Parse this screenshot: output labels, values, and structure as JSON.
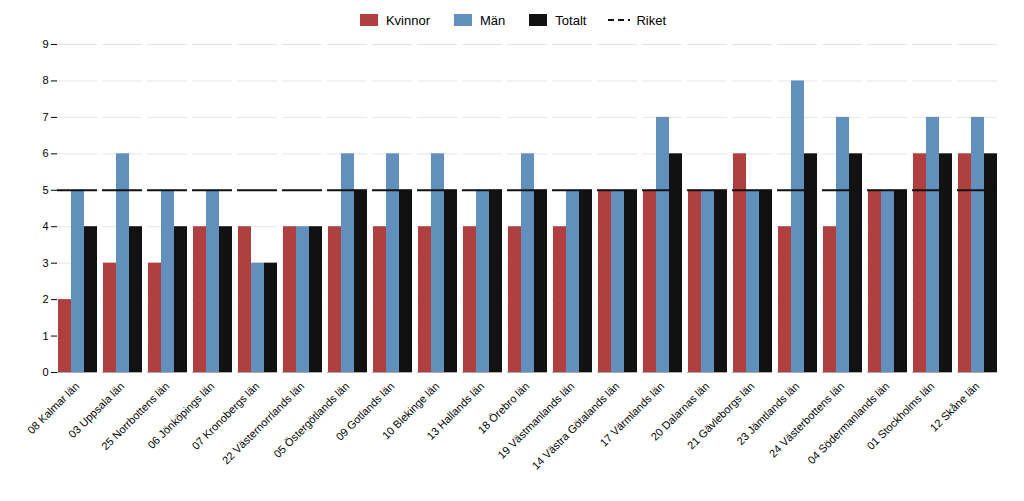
{
  "chart_data": {
    "type": "bar",
    "categories": [
      "08 Kalmar län",
      "03 Uppsala län",
      "25 Norrbottens län",
      "06 Jönköpings län",
      "07 Kronobergs län",
      "22 Västernorrlands län",
      "05 Östergötlands län",
      "09 Gotlands län",
      "10 Blekinge län",
      "13 Hallands län",
      "18 Örebro län",
      "19 Västmanlands län",
      "14 Västra Götalands län",
      "17 Värmlands län",
      "20 Dalarnas län",
      "21 Gävleborgs län",
      "23 Jämtlands län",
      "24 Västerbottens län",
      "04 Södermanlands län",
      "01 Stockholms län",
      "12 Skåne län"
    ],
    "series": [
      {
        "name": "Kvinnor",
        "type": "bar",
        "color": "#b04040",
        "values": [
          2,
          3,
          3,
          4,
          4,
          4,
          4,
          4,
          4,
          4,
          4,
          4,
          5,
          5,
          5,
          6,
          4,
          4,
          5,
          6,
          6
        ]
      },
      {
        "name": "Män",
        "type": "bar",
        "color": "#6090bb",
        "values": [
          5,
          6,
          5,
          5,
          3,
          4,
          6,
          6,
          6,
          5,
          6,
          5,
          5,
          7,
          5,
          5,
          8,
          7,
          5,
          7,
          7
        ]
      },
      {
        "name": "Totalt",
        "type": "bar",
        "color": "#111111",
        "values": [
          4,
          4,
          4,
          4,
          3,
          4,
          5,
          5,
          5,
          5,
          5,
          5,
          5,
          6,
          5,
          5,
          6,
          6,
          5,
          6,
          6
        ]
      },
      {
        "name": "Riket",
        "type": "line",
        "line_style": "dashed",
        "color": "#111111",
        "values": [
          5,
          5,
          5,
          5,
          5,
          5,
          5,
          5,
          5,
          5,
          5,
          5,
          5,
          5,
          5,
          5,
          5,
          5,
          5,
          5,
          5
        ]
      }
    ],
    "ylim": [
      0,
      9
    ],
    "yticks": [
      0,
      1,
      2,
      3,
      4,
      5,
      6,
      7,
      8,
      9
    ],
    "grid": true,
    "legend": "top"
  }
}
